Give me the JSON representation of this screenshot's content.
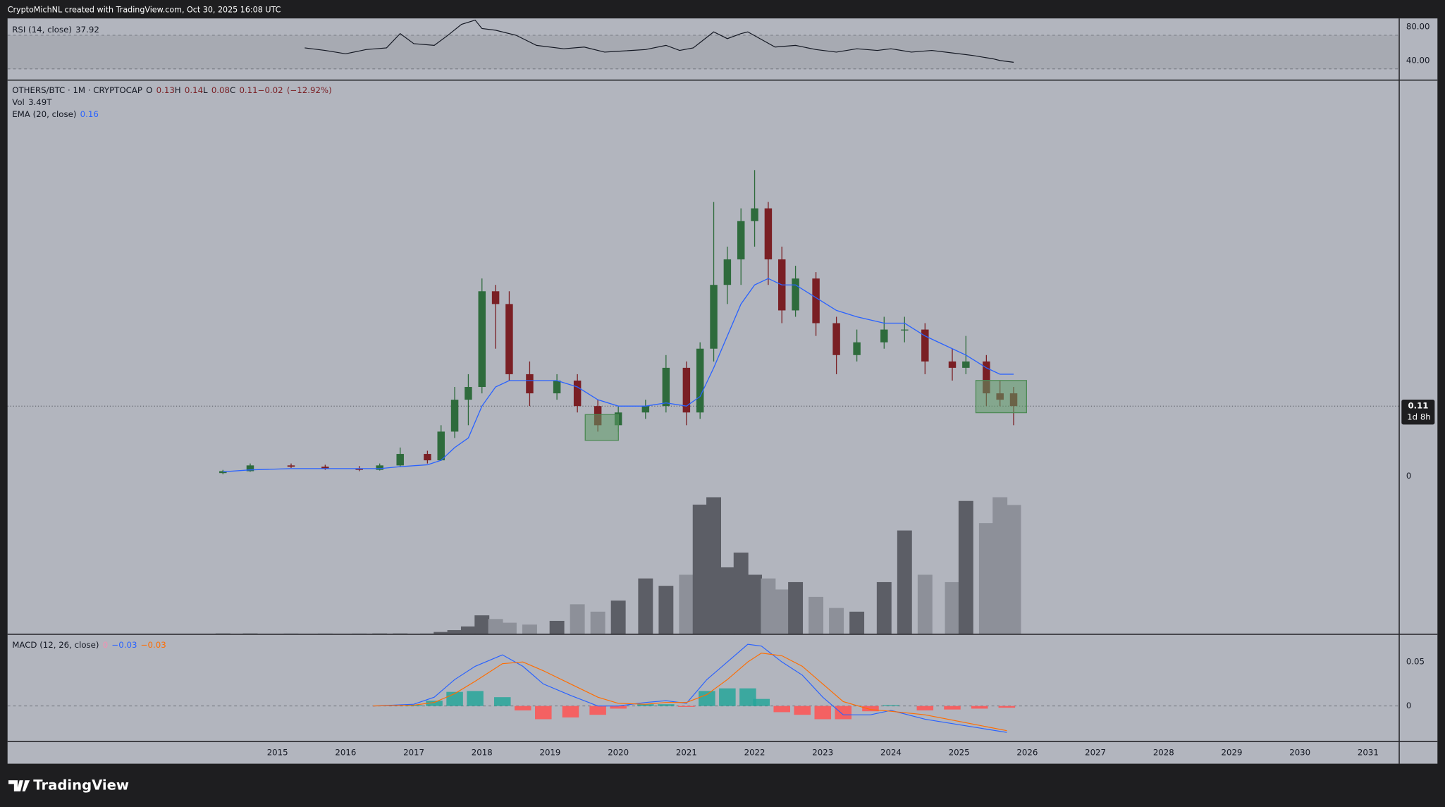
{
  "header": {
    "text": "CryptoMichNL created with TradingView.com, Oct 30, 2025 16:08 UTC"
  },
  "footer": {
    "brand": "TradingView"
  },
  "chart_data": [
    {
      "type": "line",
      "title": "RSI (14, close)",
      "color": "#131722",
      "x": [
        2015.4,
        2015.7,
        2016.0,
        2016.3,
        2016.6,
        2016.8,
        2017.0,
        2017.3,
        2017.5,
        2017.7,
        2017.9,
        2018.0,
        2018.2,
        2018.5,
        2018.8,
        2019.2,
        2019.5,
        2019.8,
        2020.0,
        2020.4,
        2020.7,
        2020.9,
        2021.1,
        2021.4,
        2021.6,
        2021.8,
        2021.9,
        2022.1,
        2022.3,
        2022.6,
        2022.9,
        2023.2,
        2023.5,
        2023.8,
        2024.0,
        2024.3,
        2024.6,
        2024.9,
        2025.2,
        2025.5,
        2025.6,
        2025.8
      ],
      "values": [
        55,
        52,
        48,
        53,
        55,
        72,
        60,
        58,
        70,
        83,
        88,
        78,
        76,
        70,
        58,
        54,
        56,
        50,
        51,
        53,
        58,
        52,
        55,
        74,
        66,
        72,
        74,
        65,
        56,
        58,
        53,
        50,
        54,
        52,
        54,
        50,
        52,
        49,
        46,
        42,
        40,
        37.92
      ],
      "band": [
        30,
        70
      ],
      "xlim": [
        2011.04,
        2031.45
      ],
      "ylim": [
        16.7,
        90
      ],
      "yticks": [
        {
          "value": 80,
          "label": "80.00"
        },
        {
          "value": 40,
          "label": "40.00"
        }
      ]
    },
    {
      "type": "candlestick",
      "title": "OTHERS/BTC · 1M · CRYPTOCAP",
      "legend_labels": [
        "O",
        "H",
        "L",
        "C"
      ],
      "change": {
        "value": -0.02,
        "label": "−0.02"
      },
      "change_percent": {
        "value": -12.92,
        "label": "(−12.92%)"
      },
      "up_color": "#2e6b3c",
      "down_color": "#7a1f24",
      "x": [
        2014.2,
        2014.6,
        2015.2,
        2015.7,
        2016.2,
        2016.5,
        2016.8,
        2017.2,
        2017.4,
        2017.6,
        2017.8,
        2018.0,
        2018.2,
        2018.4,
        2018.7,
        2019.1,
        2019.4,
        2019.7,
        2020.0,
        2020.4,
        2020.7,
        2021.0,
        2021.2,
        2021.4,
        2021.6,
        2021.8,
        2022.0,
        2022.2,
        2022.4,
        2022.6,
        2022.9,
        2023.2,
        2023.5,
        2023.9,
        2024.2,
        2024.5,
        2024.9,
        2025.1,
        2025.4,
        2025.6,
        2025.8
      ],
      "open": [
        0.005,
        0.008,
        0.017,
        0.015,
        0.012,
        0.01,
        0.017,
        0.035,
        0.025,
        0.07,
        0.12,
        0.14,
        0.29,
        0.27,
        0.16,
        0.13,
        0.15,
        0.11,
        0.08,
        0.1,
        0.11,
        0.17,
        0.1,
        0.2,
        0.3,
        0.34,
        0.4,
        0.42,
        0.34,
        0.26,
        0.31,
        0.24,
        0.19,
        0.21,
        0.23,
        0.23,
        0.18,
        0.17,
        0.18,
        0.13,
        0.13
      ],
      "high": [
        0.01,
        0.02,
        0.02,
        0.018,
        0.016,
        0.02,
        0.045,
        0.04,
        0.08,
        0.14,
        0.16,
        0.31,
        0.3,
        0.29,
        0.18,
        0.16,
        0.16,
        0.12,
        0.11,
        0.12,
        0.19,
        0.18,
        0.21,
        0.43,
        0.36,
        0.42,
        0.48,
        0.43,
        0.36,
        0.33,
        0.32,
        0.25,
        0.23,
        0.25,
        0.25,
        0.24,
        0.2,
        0.22,
        0.19,
        0.15,
        0.14
      ],
      "low": [
        0.003,
        0.007,
        0.013,
        0.01,
        0.008,
        0.009,
        0.015,
        0.02,
        0.024,
        0.06,
        0.08,
        0.13,
        0.2,
        0.15,
        0.11,
        0.12,
        0.1,
        0.07,
        0.07,
        0.09,
        0.1,
        0.08,
        0.09,
        0.18,
        0.27,
        0.3,
        0.36,
        0.3,
        0.24,
        0.25,
        0.22,
        0.16,
        0.18,
        0.2,
        0.21,
        0.16,
        0.15,
        0.16,
        0.11,
        0.11,
        0.08
      ],
      "close": [
        0.008,
        0.017,
        0.015,
        0.012,
        0.01,
        0.017,
        0.035,
        0.025,
        0.07,
        0.12,
        0.14,
        0.29,
        0.27,
        0.16,
        0.13,
        0.15,
        0.11,
        0.08,
        0.1,
        0.11,
        0.17,
        0.1,
        0.2,
        0.3,
        0.34,
        0.4,
        0.42,
        0.34,
        0.26,
        0.31,
        0.24,
        0.19,
        0.21,
        0.23,
        0.23,
        0.18,
        0.17,
        0.18,
        0.13,
        0.12,
        0.11
      ],
      "ema": {
        "name": "EMA (20, close)",
        "color": "#2962ff",
        "values": [
          0.007,
          0.01,
          0.012,
          0.012,
          0.012,
          0.012,
          0.015,
          0.018,
          0.025,
          0.045,
          0.06,
          0.11,
          0.14,
          0.15,
          0.15,
          0.15,
          0.14,
          0.12,
          0.11,
          0.11,
          0.115,
          0.11,
          0.125,
          0.17,
          0.22,
          0.27,
          0.3,
          0.31,
          0.3,
          0.3,
          0.28,
          0.26,
          0.25,
          0.24,
          0.24,
          0.22,
          0.2,
          0.19,
          0.17,
          0.16,
          0.16
        ]
      },
      "volume": {
        "name": "Vol",
        "last_label": "3.49T",
        "up_color": "#5c5e66",
        "down_color": "#8d9099",
        "ylim": [
          0,
          15
        ],
        "values": [
          0.01,
          0.01,
          0.01,
          0.01,
          0.01,
          0.01,
          0.01,
          0.01,
          0.05,
          0.1,
          0.2,
          0.5,
          0.4,
          0.3,
          0.25,
          0.35,
          0.8,
          0.6,
          0.9,
          1.5,
          1.3,
          1.6,
          3.5,
          3.7,
          1.8,
          2.2,
          1.6,
          1.5,
          1.2,
          1.4,
          1.0,
          0.7,
          0.6,
          1.4,
          2.8,
          1.6,
          1.4,
          3.6,
          3.0,
          3.7,
          3.49
        ]
      },
      "last_price": 0.11,
      "countdown": "1d 8h",
      "xlim": [
        2011.04,
        2031.45
      ],
      "ylim": [
        -0.247,
        0.621
      ],
      "yticks": [
        0
      ],
      "xticks": [
        2015,
        2016,
        2017,
        2018,
        2019,
        2020,
        2021,
        2022,
        2023,
        2024,
        2025,
        2026,
        2027,
        2028,
        2029,
        2030,
        2031
      ]
    },
    {
      "type": "line",
      "title": "MACD (12, 26, close)",
      "x": [
        2016.4,
        2017.0,
        2017.3,
        2017.6,
        2017.9,
        2018.3,
        2018.6,
        2018.9,
        2019.3,
        2019.7,
        2020.0,
        2020.4,
        2020.7,
        2021.0,
        2021.3,
        2021.6,
        2021.9,
        2022.1,
        2022.4,
        2022.7,
        2023.0,
        2023.3,
        2023.7,
        2024.0,
        2024.5,
        2024.9,
        2025.3,
        2025.7
      ],
      "histogram": {
        "name": "Histogram",
        "last_label": "0",
        "pos_color": "#26a69a",
        "neg_color": "#ff5252",
        "values": [
          0,
          0.001,
          0.006,
          0.016,
          0.017,
          0.01,
          -0.005,
          -0.015,
          -0.013,
          -0.01,
          -0.003,
          0.002,
          0.002,
          -0.001,
          0.017,
          0.02,
          0.02,
          0.008,
          -0.007,
          -0.01,
          -0.015,
          -0.015,
          -0.006,
          0.001,
          -0.005,
          -0.004,
          -0.003,
          -0.002
        ]
      },
      "series": [
        {
          "name": "MACD",
          "color": "#2962ff",
          "last_label": "−0.03",
          "values": [
            0,
            0.002,
            0.01,
            0.03,
            0.045,
            0.058,
            0.045,
            0.025,
            0.012,
            0.0,
            0.0,
            0.004,
            0.006,
            0.003,
            0.03,
            0.05,
            0.07,
            0.068,
            0.05,
            0.035,
            0.01,
            -0.01,
            -0.01,
            -0.005,
            -0.015,
            -0.02,
            -0.025,
            -0.03
          ]
        },
        {
          "name": "Signal",
          "color": "#ff6d00",
          "last_label": "−0.03",
          "values": [
            0,
            0.001,
            0.004,
            0.014,
            0.028,
            0.048,
            0.05,
            0.04,
            0.025,
            0.01,
            0.003,
            0.002,
            0.004,
            0.004,
            0.013,
            0.03,
            0.05,
            0.06,
            0.057,
            0.045,
            0.025,
            0.005,
            -0.004,
            -0.006,
            -0.01,
            -0.016,
            -0.022,
            -0.028
          ]
        }
      ],
      "xlim": [
        2011.04,
        2031.45
      ],
      "ylim": [
        -0.0404,
        0.0819
      ],
      "yticks": [
        0.05,
        0
      ]
    }
  ]
}
